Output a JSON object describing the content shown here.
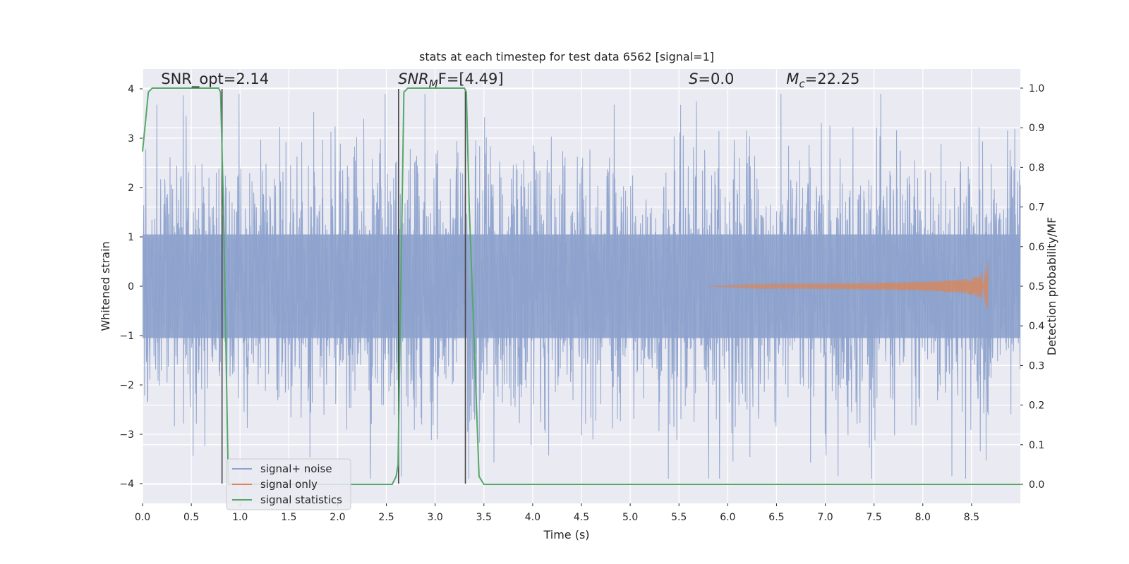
{
  "chart_data": {
    "type": "line",
    "title": "stats at each timestep for test data 6562 [signal=1]",
    "xlabel": "Time (s)",
    "ylabel": "Whitened strain",
    "y2label": "Detection probability/MF",
    "xlim": [
      0.0,
      9.0
    ],
    "ylim": [
      -4.4,
      4.4
    ],
    "y2lim": [
      -0.048,
      1.048
    ],
    "xticks": [
      0.0,
      0.5,
      1.0,
      1.5,
      2.0,
      2.5,
      3.0,
      3.5,
      4.0,
      4.5,
      5.0,
      5.5,
      6.0,
      6.5,
      7.0,
      7.5,
      8.0,
      8.5
    ],
    "yticks": [
      -4,
      -3,
      -2,
      -1,
      0,
      1,
      2,
      3,
      4
    ],
    "y2ticks": [
      0.0,
      0.1,
      0.2,
      0.3,
      0.4,
      0.5,
      0.6,
      0.7,
      0.8,
      0.9,
      1.0
    ],
    "grid": true,
    "legend_position": "lower-left",
    "annotations": [
      {
        "text": "SNR_opt=2.14",
        "x": 0.19,
        "y": 4.1
      },
      {
        "html": true,
        "main": "SNR",
        "sub": "M",
        "rest": "F=[4.49]",
        "x": 2.62,
        "y": 4.1
      },
      {
        "html": true,
        "main": "S",
        "sub": "",
        "rest": "=0.0",
        "x": 5.6,
        "y": 4.1
      },
      {
        "html": true,
        "main": "M",
        "sub": "c",
        "rest": "=22.25",
        "x": 6.6,
        "y": 4.1
      }
    ],
    "series": [
      {
        "name": "signal+ noise",
        "color": "#8da2cc",
        "kind": "noise",
        "description": "whitened strain noise samples spanning roughly -3.6 to 4.0"
      },
      {
        "name": "signal only",
        "color": "#dd8452",
        "kind": "chirp",
        "t_start": 5.8,
        "t_end": 8.67,
        "peak_amplitude": 0.55
      },
      {
        "name": "signal statistics",
        "color": "#55a868",
        "kind": "line",
        "axis": "right",
        "x": [
          0.0,
          0.06,
          0.1,
          0.5,
          0.78,
          0.8,
          0.83,
          0.88,
          1.0,
          2.0,
          2.56,
          2.6,
          2.62,
          2.68,
          2.72,
          3.0,
          3.3,
          3.32,
          3.35,
          3.45,
          3.5,
          5.0,
          7.0,
          8.5,
          9.0
        ],
        "y": [
          0.84,
          0.99,
          1.0,
          1.0,
          1.0,
          0.99,
          0.7,
          0.0,
          0.0,
          0.0,
          0.0,
          0.02,
          0.05,
          0.99,
          1.0,
          1.0,
          1.0,
          0.99,
          0.7,
          0.02,
          0.0,
          0.0,
          0.0,
          0.0,
          0.0
        ]
      }
    ],
    "vlines": [
      {
        "x": 0.815,
        "y_from": -4,
        "y_to": 4,
        "color": "#444444"
      },
      {
        "x": 2.625,
        "y_from": -4,
        "y_to": 4,
        "color": "#444444"
      },
      {
        "x": 3.31,
        "y_from": -4,
        "y_to": 4,
        "color": "#444444"
      }
    ]
  }
}
